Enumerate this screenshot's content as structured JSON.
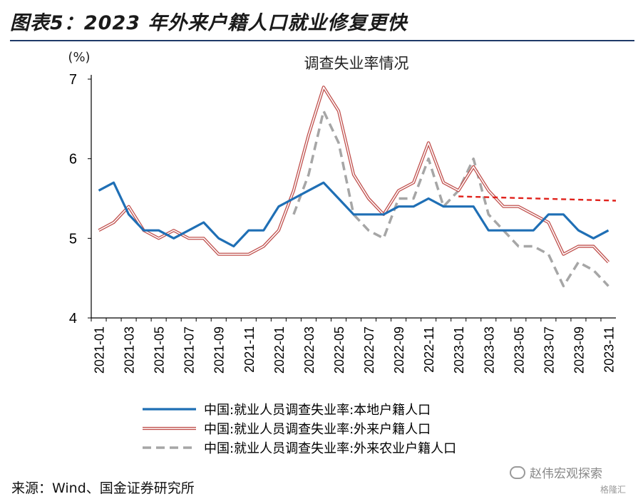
{
  "figure": {
    "title": "图表5：2023 年外来户籍人口就业修复更快",
    "source": "来源：Wind、国金证券研究所",
    "watermark": "赵伟宏观探索",
    "watermark2": "格隆汇"
  },
  "chart_data": {
    "type": "line",
    "title": "调查失业率情况",
    "ylabel": "(%)",
    "ylim": [
      4,
      7
    ],
    "yticks": [
      "4",
      "5",
      "6",
      "7"
    ],
    "x": [
      "2021-01",
      "2021-02",
      "2021-03",
      "2021-04",
      "2021-05",
      "2021-06",
      "2021-07",
      "2021-08",
      "2021-09",
      "2021-10",
      "2021-11",
      "2021-12",
      "2022-01",
      "2022-02",
      "2022-03",
      "2022-04",
      "2022-05",
      "2022-06",
      "2022-07",
      "2022-08",
      "2022-09",
      "2022-10",
      "2022-11",
      "2022-12",
      "2023-01",
      "2023-02",
      "2023-03",
      "2023-04",
      "2023-05",
      "2023-06",
      "2023-07",
      "2023-08",
      "2023-09",
      "2023-10",
      "2023-11"
    ],
    "xtick_labels": [
      "2021-01",
      "2021-03",
      "2021-05",
      "2021-07",
      "2021-09",
      "2021-11",
      "2022-01",
      "2022-03",
      "2022-05",
      "2022-07",
      "2022-09",
      "2022-11",
      "2023-01",
      "2023-03",
      "2023-05",
      "2023-07",
      "2023-09",
      "2023-11"
    ],
    "series": [
      {
        "name": "中国:就业人员调查失业率:本地户籍人口",
        "color": "#1f6fb5",
        "style": "solid",
        "values": [
          5.6,
          5.7,
          5.3,
          5.1,
          5.1,
          5.0,
          5.1,
          5.2,
          5.0,
          4.9,
          5.1,
          5.1,
          5.4,
          5.5,
          5.6,
          5.7,
          5.5,
          5.3,
          5.3,
          5.3,
          5.4,
          5.4,
          5.5,
          5.4,
          5.4,
          5.4,
          5.1,
          5.1,
          5.1,
          5.1,
          5.3,
          5.3,
          5.1,
          5.0,
          5.1
        ]
      },
      {
        "name": "中国:就业人员调查失业率:外来户籍人口",
        "color": "#c0504d",
        "style": "double",
        "values": [
          5.1,
          5.2,
          5.4,
          5.1,
          5.0,
          5.1,
          5.0,
          5.0,
          4.8,
          4.8,
          4.8,
          4.9,
          5.1,
          5.6,
          6.3,
          6.9,
          6.6,
          5.8,
          5.5,
          5.3,
          5.6,
          5.7,
          6.2,
          5.7,
          5.6,
          5.9,
          5.6,
          5.4,
          5.4,
          5.3,
          5.2,
          4.8,
          4.9,
          4.9,
          4.7
        ]
      },
      {
        "name": "中国:就业人员调查失业率:外来农业户籍人口",
        "color": "#a6a6a6",
        "style": "dashed",
        "values": [
          null,
          null,
          null,
          null,
          null,
          null,
          null,
          null,
          null,
          null,
          null,
          null,
          null,
          5.3,
          5.8,
          6.6,
          6.2,
          5.3,
          5.1,
          5.0,
          5.5,
          5.5,
          6.0,
          5.4,
          5.6,
          6.0,
          5.3,
          5.1,
          4.9,
          4.9,
          4.8,
          4.4,
          4.7,
          4.6,
          4.4
        ]
      }
    ],
    "reference_line": {
      "color": "#e0211b",
      "style": "dashed",
      "value": 5.5,
      "from": "2023-01",
      "to": "2023-12"
    }
  }
}
